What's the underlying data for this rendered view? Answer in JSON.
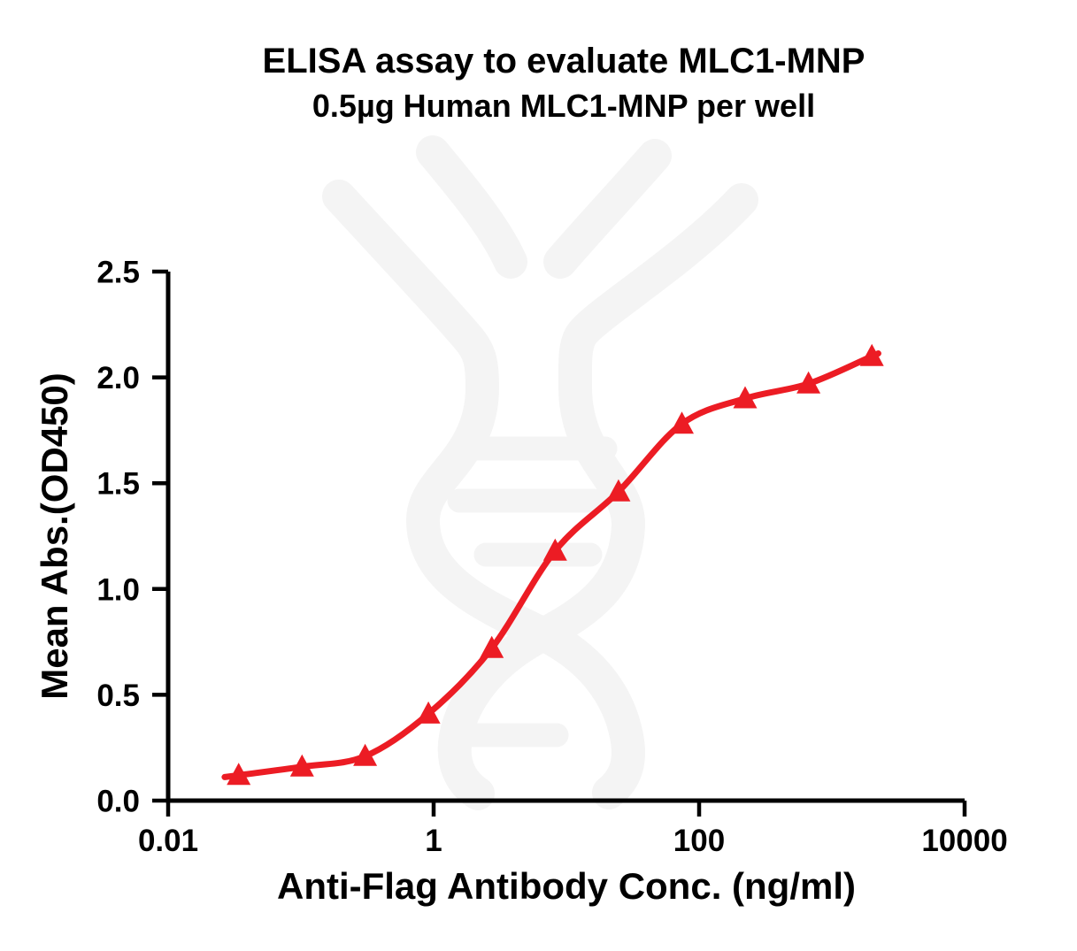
{
  "figure_type": "scientific-plot",
  "colors": {
    "background": "#ffffff",
    "curve": "#ec1c24",
    "marker": "#ec1c24",
    "axis": "#000000",
    "watermark": "#f4f4f4"
  },
  "watermark": {
    "icon": "dna-double-helix",
    "color": "#f4f4f4"
  },
  "chart_data": {
    "type": "scatter",
    "line": "4PL sigmoid dose-response fit",
    "title": "ELISA assay to evaluate MLC1-MNP",
    "subtitle": "0.5µg Human MLC1-MNP per well",
    "xlabel": "Anti-Flag Antibody Conc. (ng/ml)",
    "ylabel": "Mean Abs.(OD450)",
    "x_scale": "log10",
    "xlim": [
      0.01,
      10000
    ],
    "ylim": [
      0.0,
      2.5
    ],
    "grid": false,
    "legend_position": "none",
    "x_ticks": [
      {
        "value": 0.01,
        "label": "0.01"
      },
      {
        "value": 1,
        "label": "1"
      },
      {
        "value": 100,
        "label": "100"
      },
      {
        "value": 10000,
        "label": "10000"
      }
    ],
    "y_ticks": [
      {
        "value": 0.0,
        "label": "0.0"
      },
      {
        "value": 0.5,
        "label": "0.5"
      },
      {
        "value": 1.0,
        "label": "1.0"
      },
      {
        "value": 1.5,
        "label": "1.5"
      },
      {
        "value": 2.0,
        "label": "2.0"
      },
      {
        "value": 2.5,
        "label": "2.5"
      }
    ],
    "series": [
      {
        "name": "Human MLC1-MNP (0.5µg per well)",
        "marker": "filled-triangle-up",
        "color": "#ec1c24",
        "points": [
          {
            "x": 0.034,
            "y": 0.12
          },
          {
            "x": 0.102,
            "y": 0.16
          },
          {
            "x": 0.305,
            "y": 0.21
          },
          {
            "x": 0.914,
            "y": 0.41
          },
          {
            "x": 2.74,
            "y": 0.72
          },
          {
            "x": 8.23,
            "y": 1.18
          },
          {
            "x": 24.7,
            "y": 1.46
          },
          {
            "x": 74.1,
            "y": 1.78
          },
          {
            "x": 222,
            "y": 1.9
          },
          {
            "x": 667,
            "y": 1.97
          },
          {
            "x": 2000,
            "y": 2.1
          }
        ]
      }
    ]
  }
}
